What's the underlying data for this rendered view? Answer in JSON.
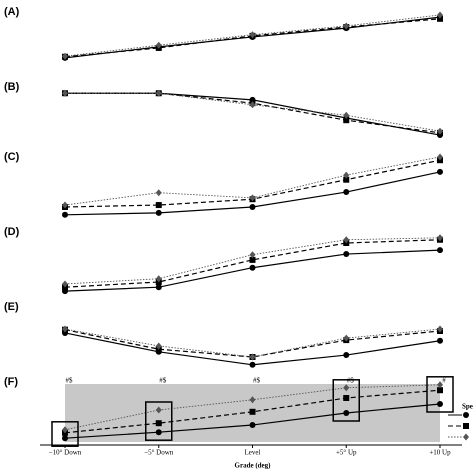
{
  "chart_data": [
    {
      "type": "line",
      "title": "(A)",
      "ylim": [
        0,
        10
      ],
      "series": [
        {
          "color": "#000",
          "dash": "solid",
          "marker": "circle",
          "values": [
            1.3,
            3.3,
            5.1,
            6.7,
            8.7
          ]
        },
        {
          "color": "#000",
          "dash": "dashed",
          "marker": "square",
          "values": [
            1.5,
            3.1,
            5.3,
            6.9,
            8.4
          ]
        },
        {
          "color": "#555",
          "dash": "dotted",
          "marker": "diamond",
          "values": [
            1.6,
            3.6,
            5.5,
            7.1,
            9.1
          ]
        }
      ]
    },
    {
      "type": "line",
      "title": "(B)",
      "ylim": [
        0,
        10
      ],
      "series": [
        {
          "color": "#000",
          "dash": "solid",
          "marker": "circle",
          "values": [
            8.5,
            8.5,
            7.3,
            4.0,
            0.9
          ]
        },
        {
          "color": "#000",
          "dash": "dashed",
          "marker": "square",
          "values": [
            8.5,
            8.5,
            6.7,
            3.6,
            1.3
          ]
        },
        {
          "color": "#555",
          "dash": "dotted",
          "marker": "diamond",
          "values": [
            8.5,
            8.5,
            6.4,
            4.5,
            1.6
          ]
        }
      ]
    },
    {
      "type": "line",
      "title": "(C)",
      "ylim": [
        0,
        10
      ],
      "series": [
        {
          "color": "#000",
          "dash": "solid",
          "marker": "circle",
          "values": [
            0.8,
            1.1,
            2.0,
            4.3,
            7.4
          ]
        },
        {
          "color": "#000",
          "dash": "dashed",
          "marker": "square",
          "values": [
            2.0,
            2.3,
            3.2,
            6.2,
            9.2
          ]
        },
        {
          "color": "#555",
          "dash": "dotted",
          "marker": "diamond",
          "values": [
            2.3,
            4.2,
            3.4,
            6.9,
            9.7
          ]
        }
      ]
    },
    {
      "type": "line",
      "title": "(D)",
      "ylim": [
        0,
        10
      ],
      "series": [
        {
          "color": "#000",
          "dash": "solid",
          "marker": "circle",
          "values": [
            0.6,
            1.2,
            4.2,
            6.3,
            6.9
          ]
        },
        {
          "color": "#000",
          "dash": "dashed",
          "marker": "square",
          "values": [
            1.2,
            2.0,
            5.4,
            8.0,
            8.5
          ]
        },
        {
          "color": "#555",
          "dash": "dotted",
          "marker": "diamond",
          "values": [
            1.7,
            2.5,
            6.2,
            8.5,
            8.8
          ]
        }
      ]
    },
    {
      "type": "line",
      "title": "(E)",
      "ylim": [
        0,
        10
      ],
      "series": [
        {
          "color": "#000",
          "dash": "solid",
          "marker": "circle",
          "values": [
            5.7,
            2.8,
            0.8,
            2.3,
            4.5
          ]
        },
        {
          "color": "#000",
          "dash": "dashed",
          "marker": "square",
          "values": [
            6.2,
            3.2,
            2.0,
            4.6,
            6.0
          ]
        },
        {
          "color": "#555",
          "dash": "dotted",
          "marker": "diamond",
          "values": [
            6.3,
            3.7,
            2.0,
            4.9,
            6.3
          ]
        }
      ]
    },
    {
      "type": "line",
      "title": "(F)",
      "ylim": [
        0,
        10
      ],
      "xlabel": "Grade (deg)",
      "categories": [
        "−10° Down",
        "−5° Down",
        "Level",
        "+5° Up",
        "+10 Up"
      ],
      "annotations": [
        "#$",
        "#$",
        "#$",
        "#$",
        "#"
      ],
      "highlight": [
        true,
        true,
        false,
        true,
        true
      ],
      "shaded": true,
      "legend_title": "Spe",
      "legend": "right",
      "series": [
        {
          "color": "#000",
          "dash": "solid",
          "marker": "circle",
          "values": [
            0.3,
            1.3,
            2.5,
            4.5,
            6.0
          ]
        },
        {
          "color": "#000",
          "dash": "dashed",
          "marker": "square",
          "values": [
            1.2,
            2.8,
            4.7,
            7.0,
            8.3
          ]
        },
        {
          "color": "#555",
          "dash": "dotted",
          "marker": "diamond",
          "values": [
            1.7,
            5.0,
            6.7,
            8.7,
            9.2
          ]
        }
      ]
    }
  ]
}
